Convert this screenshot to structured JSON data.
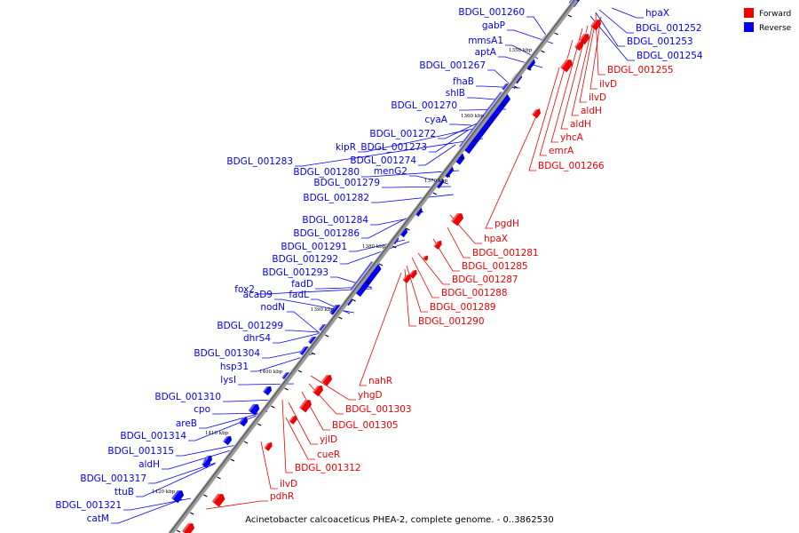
{
  "colors": {
    "forward": "#ee0000",
    "reverse": "#0000ee",
    "backbone": "#666666"
  },
  "legend": {
    "forward_label": "Forward",
    "reverse_label": "Reverse"
  },
  "caption": "Acinetobacter calcoaceticus PHEA-2, complete genome. - 0..3862530",
  "tick_labels": [
    "1350 kbp",
    "1360 kbp",
    "1370 kbp",
    "1380 kbp",
    "1390 kbp",
    "1400 kbp",
    "1410 kbp",
    "1420 kbp"
  ],
  "reverse_labels": [
    "BDGL_001260",
    "gabP",
    "mmsA1",
    "aptA",
    "BDGL_001267",
    "fhaB",
    "shlB",
    "BDGL_001270",
    "cyaA",
    "BDGL_001272",
    "kipR",
    "BDGL_001273",
    "BDGL_001274",
    "BDGL_001283",
    "menG2",
    "BDGL_001280",
    "BDGL_001279",
    "BDGL_001282",
    "BDGL_001284",
    "BDGL_001286",
    "BDGL_001291",
    "BDGL_001292",
    "BDGL_001293",
    "fadD",
    "fox2",
    "acaD9",
    "fadL",
    "nodN",
    "BDGL_001299",
    "dhrS4",
    "BDGL_001304",
    "hsp31",
    "lysI",
    "BDGL_001310",
    "cpo",
    "areB",
    "BDGL_001314",
    "BDGL_001315",
    "aldH",
    "BDGL_001317",
    "ttuB",
    "BDGL_001321",
    "catM"
  ],
  "reverse_top_right": [
    "hpaX",
    "BDGL_001252",
    "BDGL_001253",
    "BDGL_001254"
  ],
  "forward_labels": [
    "BDGL_001255",
    "ilvD",
    "ilvD",
    "aldH",
    "aldH",
    "yhcA",
    "emrA",
    "BDGL_001266",
    "pgdH",
    "hpaX",
    "BDGL_001281",
    "BDGL_001285",
    "BDGL_001287",
    "BDGL_001288",
    "BDGL_001289",
    "BDGL_001290",
    "nahR",
    "yhgD",
    "BDGL_001303",
    "BDGL_001305",
    "yjlD",
    "cueR",
    "BDGL_001312",
    "ilvD",
    "pdhR"
  ]
}
